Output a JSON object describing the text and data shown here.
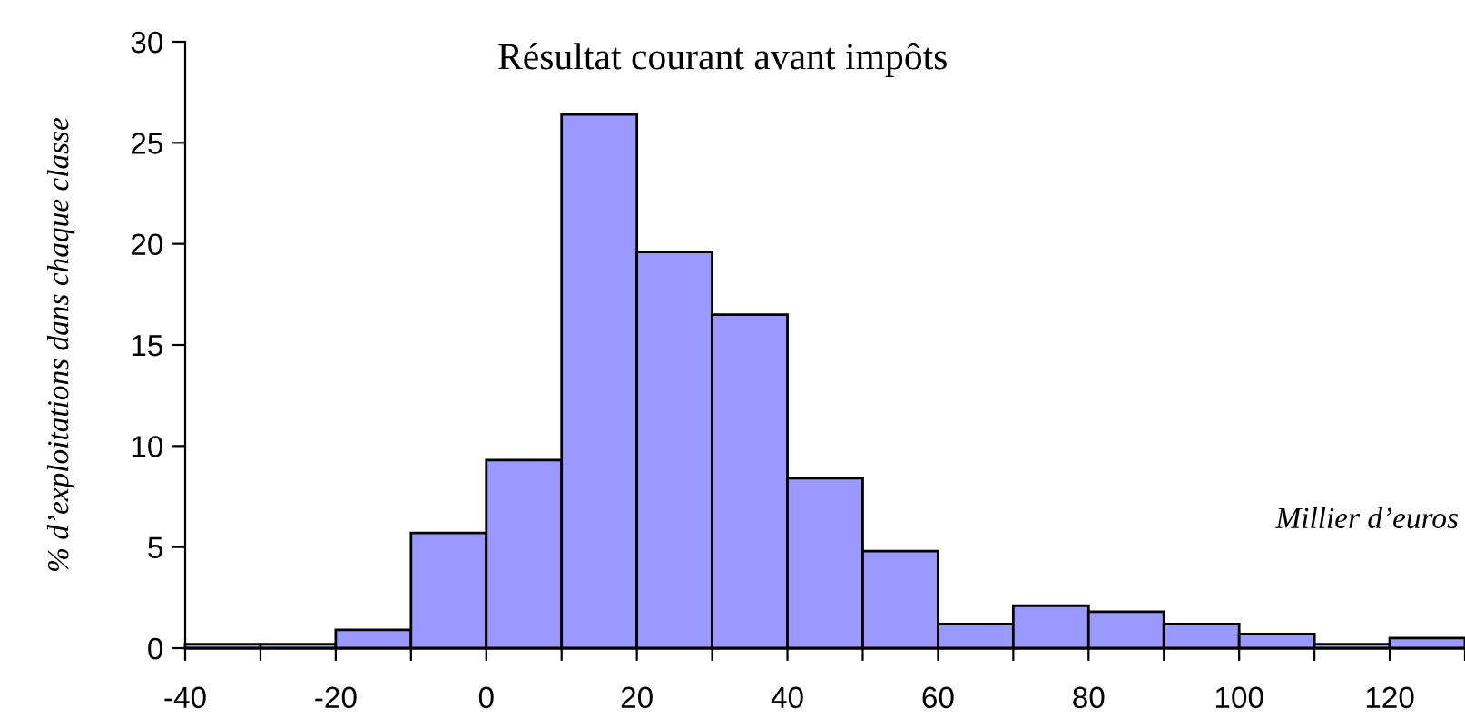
{
  "chart_data": {
    "type": "histogram",
    "title": "Résultat courant avant impôts",
    "ylabel": "% d’exploitations dans chaque classe",
    "annotations": [
      "Millier d’euros"
    ],
    "bins": [
      -40,
      -30,
      -20,
      -10,
      0,
      10,
      20,
      30,
      40,
      50,
      60,
      70,
      80,
      90,
      100,
      110,
      120,
      130
    ],
    "values": [
      0.2,
      0.2,
      0.9,
      5.7,
      9.3,
      26.4,
      19.6,
      16.5,
      8.4,
      4.8,
      1.2,
      2.1,
      1.8,
      1.2,
      0.7,
      0.2,
      0.5
    ],
    "color": "#9999ff",
    "xlim": [
      -40,
      130
    ],
    "xticks": [
      -40,
      {
        "value": -30,
        "label": null
      },
      -20,
      {
        "value": -10,
        "label": null
      },
      0,
      {
        "value": 10,
        "label": null
      },
      20,
      {
        "value": 30,
        "label": null
      },
      40,
      {
        "value": 50,
        "label": null
      },
      60,
      {
        "value": 70,
        "label": null
      },
      80,
      {
        "value": 90,
        "label": null
      },
      100,
      {
        "value": 110,
        "label": null
      },
      120,
      {
        "value": 130,
        "label": null
      }
    ],
    "ylim": [
      0,
      30
    ],
    "yticks": [
      0,
      5,
      10,
      15,
      20,
      25,
      30
    ],
    "grid": false
  }
}
